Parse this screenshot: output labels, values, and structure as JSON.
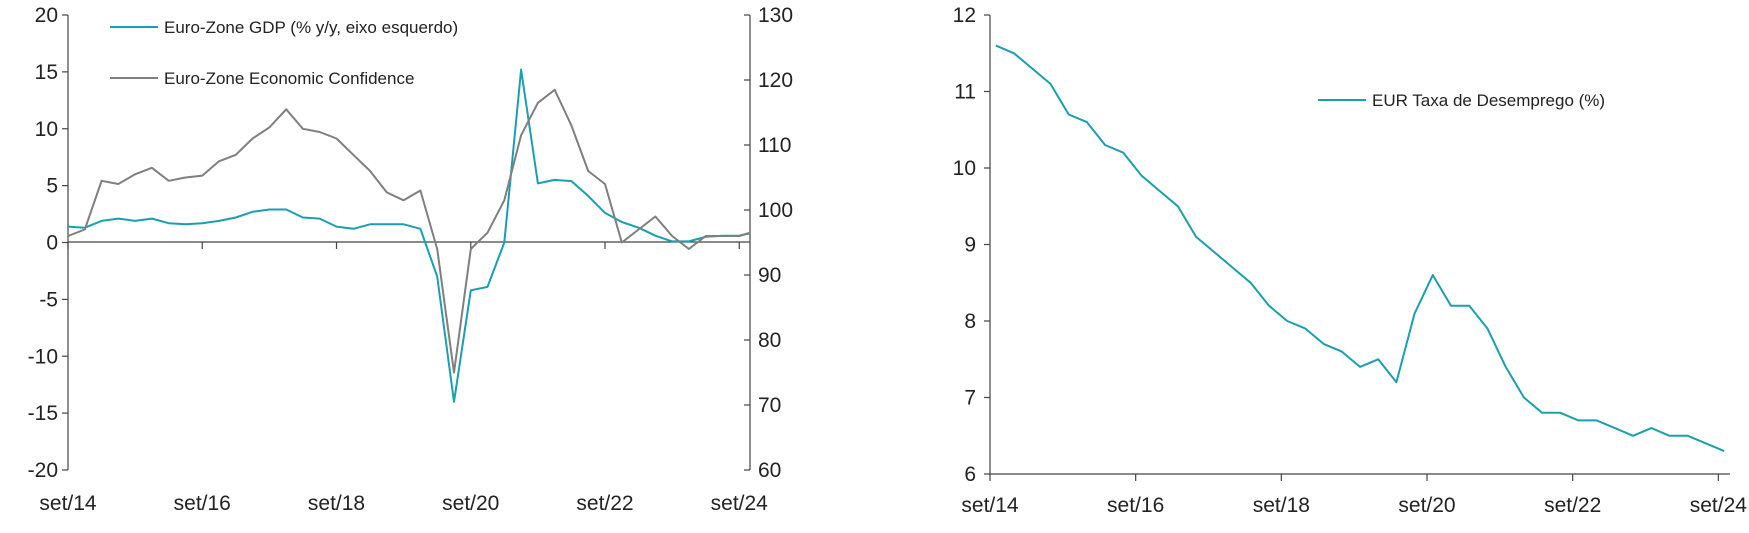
{
  "colors": {
    "gdp": "#1a9fb0",
    "confidence": "#7f7f7f",
    "unemployment": "#1a9fb0",
    "axis": "#444444"
  },
  "chart_data": [
    {
      "type": "line",
      "x_ticks": [
        "set/14",
        "set/16",
        "set/18",
        "set/20",
        "set/22",
        "set/24"
      ],
      "y_left_ticks": [
        "20",
        "15",
        "10",
        "5",
        "0",
        "-5",
        "-10",
        "-15",
        "-20"
      ],
      "y_right_ticks": [
        "130",
        "120",
        "110",
        "100",
        "90",
        "80",
        "70",
        "60"
      ],
      "ylim_left": [
        -20,
        20
      ],
      "ylim_right": [
        60,
        130
      ],
      "x_range": [
        2014.67,
        2024.83
      ],
      "legend_placement": "top-left",
      "series": [
        {
          "name": "Euro-Zone GDP (% y/y, eixo esquerdo)",
          "axis": "left",
          "x": [
            2014.67,
            2014.92,
            2015.17,
            2015.42,
            2015.67,
            2015.92,
            2016.17,
            2016.42,
            2016.67,
            2016.92,
            2017.17,
            2017.42,
            2017.67,
            2017.92,
            2018.17,
            2018.42,
            2018.67,
            2018.92,
            2019.17,
            2019.42,
            2019.67,
            2019.92,
            2020.17,
            2020.42,
            2020.67,
            2020.92,
            2021.17,
            2021.42,
            2021.67,
            2021.92,
            2022.17,
            2022.42,
            2022.67,
            2022.92,
            2023.17,
            2023.42,
            2023.67,
            2023.92,
            2024.17,
            2024.42,
            2024.67,
            2024.83
          ],
          "values": [
            1.4,
            1.3,
            1.9,
            2.1,
            1.9,
            2.1,
            1.7,
            1.6,
            1.7,
            1.9,
            2.2,
            2.7,
            2.9,
            2.9,
            2.2,
            2.1,
            1.4,
            1.2,
            1.6,
            1.6,
            1.6,
            1.2,
            -3.0,
            -14.0,
            -4.2,
            -3.9,
            0.0,
            15.2,
            5.2,
            5.5,
            5.4,
            4.1,
            2.6,
            1.8,
            1.3,
            0.6,
            0.1,
            0.1,
            0.5,
            0.6,
            0.6,
            0.8
          ]
        },
        {
          "name": "Euro-Zone Economic Confidence",
          "axis": "right",
          "x": [
            2014.67,
            2014.92,
            2015.17,
            2015.42,
            2015.67,
            2015.92,
            2016.17,
            2016.42,
            2016.67,
            2016.92,
            2017.17,
            2017.42,
            2017.67,
            2017.92,
            2018.17,
            2018.42,
            2018.67,
            2018.92,
            2019.17,
            2019.42,
            2019.67,
            2019.92,
            2020.17,
            2020.42,
            2020.67,
            2020.92,
            2021.17,
            2021.42,
            2021.67,
            2021.92,
            2022.17,
            2022.42,
            2022.67,
            2022.92,
            2023.17,
            2023.42,
            2023.67,
            2023.92,
            2024.17,
            2024.42,
            2024.67,
            2024.83
          ],
          "values": [
            96,
            97,
            104.5,
            104,
            105.5,
            106.5,
            104.5,
            105,
            105.3,
            107.5,
            108.5,
            111,
            112.7,
            115.5,
            112.5,
            112,
            111,
            108.5,
            106,
            102.7,
            101.5,
            103,
            94,
            75,
            94,
            96.5,
            101.5,
            111.5,
            116.5,
            118.5,
            113,
            106,
            104,
            95,
            97,
            99,
            96,
            94,
            96,
            96,
            96,
            96.5
          ]
        }
      ]
    },
    {
      "type": "line",
      "x_ticks": [
        "set/14",
        "set/16",
        "set/18",
        "set/20",
        "set/22",
        "set/24"
      ],
      "y_ticks": [
        "12",
        "11",
        "10",
        "9",
        "8",
        "7",
        "6"
      ],
      "ylim": [
        6,
        12
      ],
      "x_range": [
        2014.67,
        2024.83
      ],
      "legend_placement": "top-right",
      "series": [
        {
          "name": "EUR Taxa de Desemprego (%)",
          "x": [
            2014.75,
            2015.0,
            2015.25,
            2015.5,
            2015.75,
            2016.0,
            2016.25,
            2016.5,
            2016.75,
            2017.0,
            2017.25,
            2017.5,
            2017.75,
            2018.0,
            2018.25,
            2018.5,
            2018.75,
            2019.0,
            2019.25,
            2019.5,
            2019.75,
            2020.0,
            2020.25,
            2020.5,
            2020.75,
            2021.0,
            2021.25,
            2021.5,
            2021.75,
            2022.0,
            2022.25,
            2022.5,
            2022.75,
            2023.0,
            2023.25,
            2023.5,
            2023.75,
            2024.0,
            2024.25,
            2024.5,
            2024.75
          ],
          "values": [
            11.6,
            11.5,
            11.3,
            11.1,
            10.7,
            10.6,
            10.3,
            10.2,
            9.9,
            9.7,
            9.5,
            9.1,
            8.9,
            8.7,
            8.5,
            8.2,
            8.0,
            7.9,
            7.7,
            7.6,
            7.4,
            7.5,
            7.2,
            8.1,
            8.6,
            8.2,
            8.2,
            7.9,
            7.4,
            7.0,
            6.8,
            6.8,
            6.7,
            6.7,
            6.6,
            6.5,
            6.6,
            6.5,
            6.5,
            6.4,
            6.3
          ]
        }
      ]
    }
  ]
}
